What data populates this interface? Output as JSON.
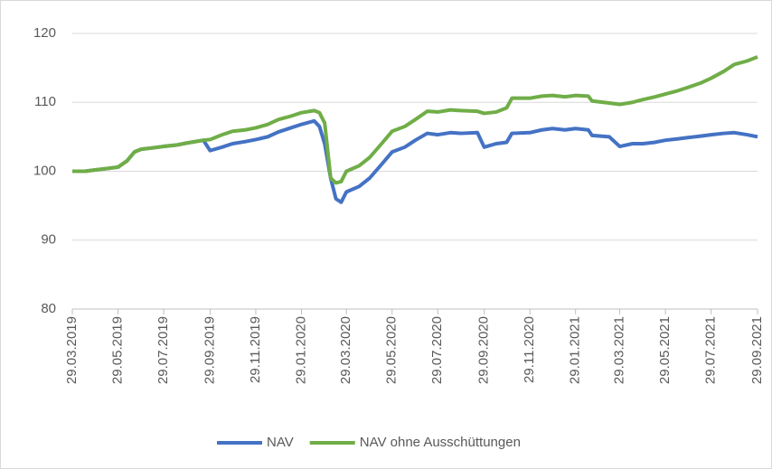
{
  "chart_data": {
    "type": "line",
    "x": [
      "29.03.2019",
      "15.04.2019",
      "29.04.2019",
      "15.05.2019",
      "29.05.2019",
      "10.06.2019",
      "20.06.2019",
      "29.06.2019",
      "15.07.2019",
      "29.07.2019",
      "15.08.2019",
      "29.08.2019",
      "20.09.2019",
      "29.09.2019",
      "15.10.2019",
      "29.10.2019",
      "15.11.2019",
      "29.11.2019",
      "15.12.2019",
      "29.12.2019",
      "15.01.2020",
      "29.01.2020",
      "15.02.2020",
      "22.02.2020",
      "29.02.2020",
      "08.03.2020",
      "15.03.2020",
      "22.03.2020",
      "29.03.2020",
      "15.04.2020",
      "29.04.2020",
      "15.05.2020",
      "29.05.2020",
      "15.06.2020",
      "29.06.2020",
      "15.07.2020",
      "29.07.2020",
      "15.08.2020",
      "29.08.2020",
      "20.09.2020",
      "29.09.2020",
      "15.10.2020",
      "29.10.2020",
      "05.11.2020",
      "29.11.2020",
      "15.12.2020",
      "29.12.2020",
      "15.01.2021",
      "29.01.2021",
      "15.02.2021",
      "20.02.2021",
      "15.03.2021",
      "29.03.2021",
      "15.04.2021",
      "29.04.2021",
      "15.05.2021",
      "29.05.2021",
      "15.06.2021",
      "29.06.2021",
      "15.07.2021",
      "29.07.2021",
      "15.08.2021",
      "29.08.2021",
      "15.09.2021",
      "29.09.2021"
    ],
    "series": [
      {
        "name": "NAV",
        "color": "#4472c4",
        "values": [
          100,
          100,
          100.2,
          100.4,
          100.6,
          101.5,
          102.8,
          103.2,
          103.4,
          103.6,
          103.8,
          104.1,
          104.5,
          103,
          103.5,
          104,
          104.3,
          104.6,
          105,
          105.7,
          106.3,
          106.8,
          107.3,
          106.5,
          104,
          99,
          96,
          95.5,
          97,
          97.8,
          99,
          101,
          102.8,
          103.5,
          104.5,
          105.5,
          105.3,
          105.6,
          105.5,
          105.6,
          103.5,
          104,
          104.2,
          105.5,
          105.6,
          106,
          106.2,
          106,
          106.2,
          106,
          105.2,
          105,
          103.6,
          104,
          104,
          104.2,
          104.5,
          104.7,
          104.9,
          105.1,
          105.3,
          105.5,
          105.6,
          105.3,
          105
        ]
      },
      {
        "name": "NAV ohne Ausschüttungen",
        "color": "#70ad47",
        "values": [
          100,
          100,
          100.2,
          100.4,
          100.6,
          101.5,
          102.8,
          103.2,
          103.4,
          103.6,
          103.8,
          104.1,
          104.5,
          104.6,
          105.3,
          105.8,
          106,
          106.3,
          106.8,
          107.5,
          108,
          108.5,
          108.8,
          108.5,
          107,
          99,
          98.3,
          98.5,
          100,
          100.8,
          102,
          104,
          105.8,
          106.5,
          107.5,
          108.7,
          108.6,
          108.9,
          108.8,
          108.7,
          108.4,
          108.6,
          109.2,
          110.6,
          110.6,
          110.9,
          111,
          110.8,
          111,
          110.9,
          110.2,
          109.9,
          109.7,
          110,
          110.4,
          110.8,
          111.2,
          111.7,
          112.2,
          112.8,
          113.5,
          114.5,
          115.5,
          116,
          116.6
        ]
      }
    ],
    "xlim": [
      "29.03.2019",
      "29.09.2021"
    ],
    "xticks": [
      "29.03.2019",
      "29.05.2019",
      "29.07.2019",
      "29.09.2019",
      "29.11.2019",
      "29.01.2020",
      "29.03.2020",
      "29.05.2020",
      "29.07.2020",
      "29.09.2020",
      "29.11.2020",
      "29.01.2021",
      "29.03.2021",
      "29.05.2021",
      "29.07.2021",
      "29.09.2021"
    ],
    "ylim": [
      80,
      120
    ],
    "yticks": [
      80,
      90,
      100,
      110,
      120
    ],
    "grid": true,
    "legend": "bottom"
  }
}
